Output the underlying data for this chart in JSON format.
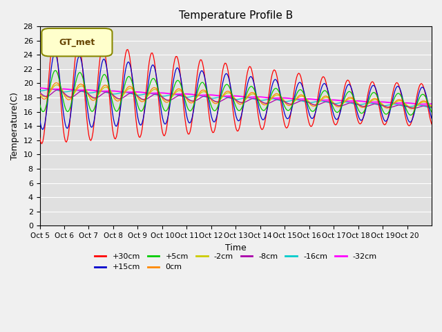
{
  "title": "Temperature Profile B",
  "xlabel": "Time",
  "ylabel": "Temperature(C)",
  "ylim": [
    0,
    28
  ],
  "yticks": [
    0,
    2,
    4,
    6,
    8,
    10,
    12,
    14,
    16,
    18,
    20,
    22,
    24,
    26,
    28
  ],
  "xtick_positions": [
    0,
    1,
    2,
    3,
    4,
    5,
    6,
    7,
    8,
    9,
    10,
    11,
    12,
    13,
    14,
    15
  ],
  "xtick_labels": [
    "Oct 5",
    "Oct 6",
    "Oct 7",
    "Oct 8",
    "Oct 9",
    "Oct 10",
    "Oct 11",
    "Oct 12",
    "Oct 13",
    "Oct 14",
    "Oct 15",
    "Oct 16",
    "Oct 17",
    "Oct 18",
    "Oct 19",
    "Oct 20"
  ],
  "bg_color": "#e0e0e0",
  "grid_color": "#ffffff",
  "series_colors": {
    "+30cm": "#ff0000",
    "+15cm": "#0000cc",
    "+5cm": "#00cc00",
    "0cm": "#ff8800",
    "-2cm": "#cccc00",
    "-8cm": "#aa00aa",
    "-16cm": "#00cccc",
    "-32cm": "#ff00ff"
  },
  "legend_label": "GT_met",
  "legend_box_bg": "#ffffcc",
  "legend_box_edge": "#888800",
  "n_days": 16
}
